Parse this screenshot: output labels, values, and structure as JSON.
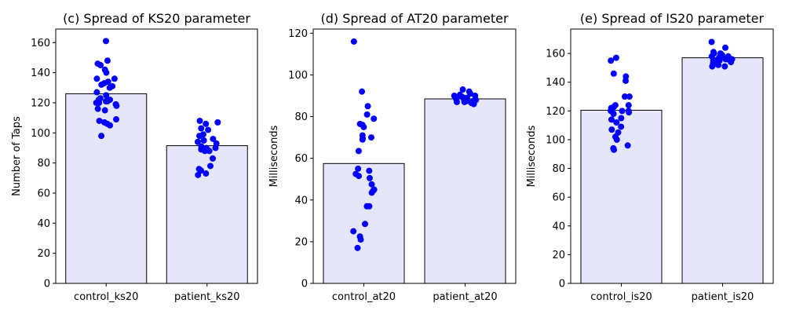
{
  "chart_data": [
    {
      "type": "bar",
      "title": "(c) Spread of KS20 parameter",
      "ylabel": "Number of Taps",
      "xlabel": "",
      "categories": [
        "control_ks20",
        "patient_ks20"
      ],
      "values": [
        126,
        91.5
      ],
      "ylim": [
        0,
        169
      ],
      "yticks": [
        0,
        20,
        40,
        60,
        80,
        100,
        120,
        140,
        160
      ],
      "points": [
        [
          161,
          148,
          146,
          145,
          142,
          140,
          136,
          136,
          134,
          133,
          132,
          131,
          130,
          127,
          125,
          123,
          122,
          122,
          121,
          121,
          120,
          120,
          119,
          118,
          116,
          115,
          109,
          108,
          107,
          106,
          105,
          98
        ],
        [
          108,
          107,
          106,
          103,
          102,
          99,
          98,
          96,
          95,
          95,
          94,
          93,
          91,
          90,
          90,
          89,
          88,
          88,
          83,
          78,
          76,
          75,
          73,
          72
        ]
      ]
    },
    {
      "type": "bar",
      "title": "(d) Spread of AT20 parameter",
      "ylabel": "Milliseconds",
      "xlabel": "",
      "categories": [
        "control_at20",
        "patient_at20"
      ],
      "values": [
        57.5,
        88.5
      ],
      "ylim": [
        0,
        122
      ],
      "yticks": [
        0,
        20,
        40,
        60,
        80,
        100,
        120
      ],
      "points": [
        [
          116,
          92,
          85,
          81,
          79,
          76.5,
          76,
          75,
          71,
          70,
          69.5,
          69,
          63.5,
          55,
          54,
          52.5,
          51.5,
          50.5,
          47.5,
          45,
          44.5,
          43.5,
          37,
          37,
          28.5,
          25,
          22.5,
          21,
          17
        ],
        [
          93,
          92,
          91,
          90.5,
          90,
          90,
          89.5,
          89,
          89,
          88.5,
          88,
          88,
          87.5,
          87.5,
          87,
          87,
          86.5,
          86
        ]
      ]
    },
    {
      "type": "bar",
      "title": "(e) Spread of IS20 parameter",
      "ylabel": "Milliseconds",
      "xlabel": "",
      "categories": [
        "control_is20",
        "patient_is20"
      ],
      "values": [
        120.5,
        157
      ],
      "ylim": [
        0,
        177
      ],
      "yticks": [
        0,
        20,
        40,
        60,
        80,
        100,
        120,
        140,
        160
      ],
      "points": [
        [
          157,
          155,
          146,
          144,
          141,
          130,
          130,
          124,
          124,
          123,
          122,
          121,
          120,
          120,
          120,
          119,
          118,
          115,
          114,
          112,
          109,
          107,
          105,
          102,
          100,
          96,
          94,
          93
        ],
        [
          168,
          164,
          161,
          160,
          160,
          159,
          159,
          158,
          158,
          158,
          157,
          157,
          156,
          156,
          156,
          155,
          155,
          155,
          154,
          154,
          153,
          153,
          152,
          151,
          151
        ]
      ]
    }
  ]
}
